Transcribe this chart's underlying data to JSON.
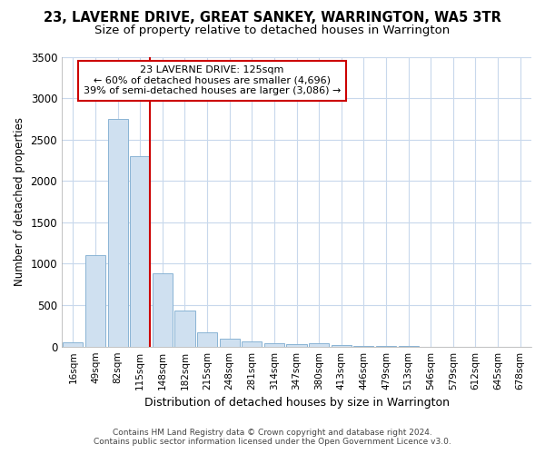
{
  "title": "23, LAVERNE DRIVE, GREAT SANKEY, WARRINGTON, WA5 3TR",
  "subtitle": "Size of property relative to detached houses in Warrington",
  "xlabel": "Distribution of detached houses by size in Warrington",
  "ylabel": "Number of detached properties",
  "footer_line1": "Contains HM Land Registry data © Crown copyright and database right 2024.",
  "footer_line2": "Contains public sector information licensed under the Open Government Licence v3.0.",
  "annotation_line1": "23 LAVERNE DRIVE: 125sqm",
  "annotation_line2": "← 60% of detached houses are smaller (4,696)",
  "annotation_line3": "39% of semi-detached houses are larger (3,086) →",
  "bar_color": "#cfe0f0",
  "bar_edge_color": "#8ab4d4",
  "vline_color": "#cc0000",
  "annotation_box_edge": "#cc0000",
  "fig_bg_color": "#ffffff",
  "ax_bg_color": "#ffffff",
  "grid_color": "#c8d8ec",
  "categories": [
    "16sqm",
    "49sqm",
    "82sqm",
    "115sqm",
    "148sqm",
    "182sqm",
    "215sqm",
    "248sqm",
    "281sqm",
    "314sqm",
    "347sqm",
    "380sqm",
    "413sqm",
    "446sqm",
    "479sqm",
    "513sqm",
    "546sqm",
    "579sqm",
    "612sqm",
    "645sqm",
    "678sqm"
  ],
  "values": [
    50,
    1100,
    2750,
    2300,
    880,
    430,
    175,
    95,
    60,
    40,
    25,
    40,
    15,
    8,
    4,
    2,
    1,
    1,
    0,
    0,
    0
  ],
  "vline_bin_index": 3,
  "ylim": [
    0,
    3500
  ],
  "yticks": [
    0,
    500,
    1000,
    1500,
    2000,
    2500,
    3000,
    3500
  ]
}
